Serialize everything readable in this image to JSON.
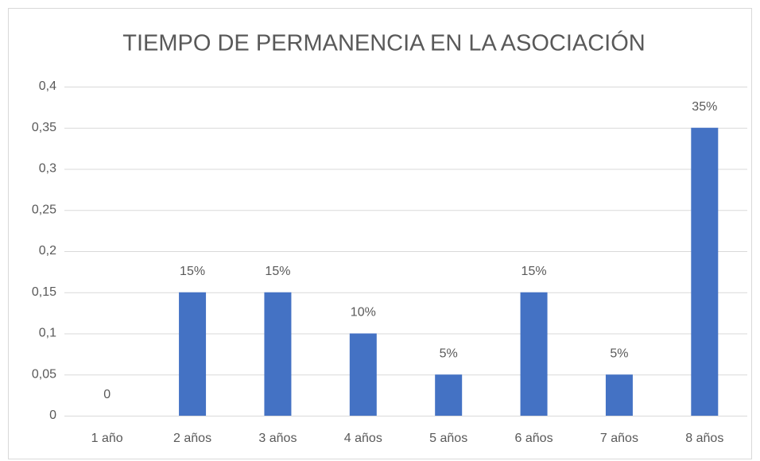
{
  "chart_data": {
    "type": "bar",
    "title": "TIEMPO DE PERMANENCIA EN LA ASOCIACIÓN",
    "categories": [
      "1 año",
      "2 años",
      "3 años",
      "4 años",
      "5 años",
      "6 años",
      "7 años",
      "8 años"
    ],
    "values": [
      0,
      0.15,
      0.15,
      0.1,
      0.05,
      0.15,
      0.05,
      0.35
    ],
    "value_labels": [
      "0",
      "15%",
      "15%",
      "10%",
      "5%",
      "15%",
      "5%",
      "35%"
    ],
    "color": "#4472c4",
    "ylim": [
      0,
      0.4
    ],
    "yticks": [
      0,
      {
        "value": 0.05,
        "label": "0,05"
      },
      {
        "value": 0.1,
        "label": "0,1"
      },
      {
        "value": 0.15,
        "label": "0,15"
      },
      {
        "value": 0.2,
        "label": "0,2"
      },
      {
        "value": 0.25,
        "label": "0,25"
      },
      {
        "value": 0.3,
        "label": "0,3"
      },
      {
        "value": 0.35,
        "label": "0,35"
      },
      {
        "value": 0.4,
        "label": "0,4"
      }
    ],
    "grid": true
  }
}
